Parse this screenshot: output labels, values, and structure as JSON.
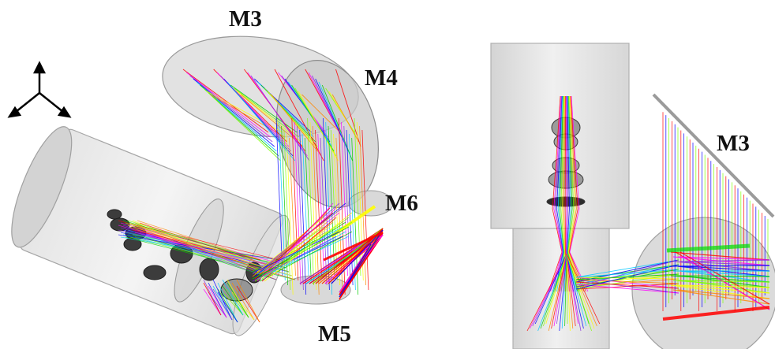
{
  "labels": {
    "m3_left": "M3",
    "m4": "M4",
    "m6": "M6",
    "m5": "M5",
    "m3_right": "M3"
  },
  "ray_colors": [
    "#ff0000",
    "#ff00ff",
    "#8a2be2",
    "#0000ff",
    "#00c8ff",
    "#00cc00",
    "#7fff00",
    "#ffff00",
    "#ff8800"
  ],
  "housing_color": "#bdbdbd"
}
